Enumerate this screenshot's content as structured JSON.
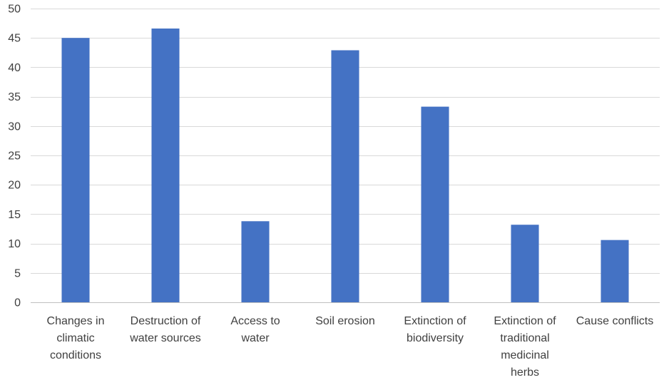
{
  "chart_data": {
    "type": "bar",
    "title": "",
    "xlabel": "",
    "ylabel": "",
    "ylim": [
      0,
      50
    ],
    "yticks": [
      0,
      5,
      10,
      15,
      20,
      25,
      30,
      35,
      40,
      45,
      50
    ],
    "grid": true,
    "legend": "none",
    "bar_color": "#4472C4",
    "categories": [
      [
        "Changes in",
        "climatic",
        "conditions"
      ],
      [
        "Destruction of",
        "water sources"
      ],
      [
        "Access to",
        "water"
      ],
      [
        "Soil erosion"
      ],
      [
        "Extinction of",
        "biodiversity"
      ],
      [
        "Extinction of",
        "traditional",
        "medicinal",
        "herbs"
      ],
      [
        "Cause conflicts"
      ]
    ],
    "values": [
      45.0,
      46.6,
      13.8,
      42.9,
      33.3,
      13.2,
      10.6
    ]
  }
}
